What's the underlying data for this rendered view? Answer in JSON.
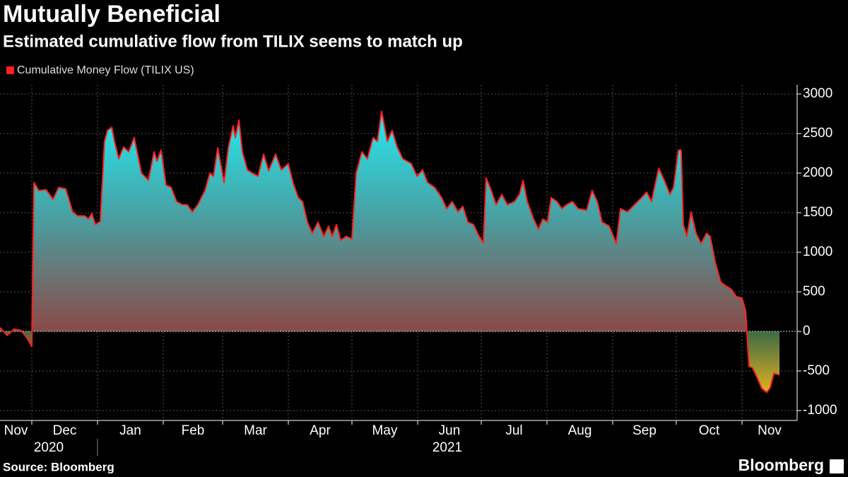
{
  "chart_data": {
    "type": "area",
    "title": "Mutually Beneficial",
    "subtitle": "Estimated cumulative flow from TILIX seems to match up",
    "series": [
      {
        "name": "Cumulative Money Flow (TILIX US)",
        "color": "#ff2020",
        "x": [
          15,
          18.3,
          21.7,
          25,
          27.7,
          30,
          31,
          33.3,
          36.7,
          40,
          42.7,
          46,
          49.3,
          51.7,
          55,
          56.7,
          58.3,
          60,
          62.3,
          64.3,
          65.7,
          67.7,
          69,
          71,
          73.3,
          75.7,
          78.3,
          81.7,
          85,
          87.7,
          89,
          91,
          93.3,
          95.7,
          98.3,
          101,
          103.3,
          105.7,
          108.3,
          111.7,
          114,
          115.7,
          117.7,
          120.7,
          122.7,
          125,
          126,
          127.7,
          129.3,
          131.7,
          134,
          136.7,
          139.3,
          141.7,
          145,
          147.7,
          151,
          153.3,
          155.7,
          157.7,
          160,
          162.3,
          165,
          167.7,
          170,
          171.7,
          173.7,
          175.7,
          178.3,
          181,
          183,
          185.7,
          188.3,
          191,
          193,
          195,
          197.7,
          200,
          202.3,
          205,
          209,
          211.7,
          214.3,
          216.7,
          220,
          223.3,
          225.7,
          228.3,
          231,
          233.3,
          235.7,
          238.3,
          241,
          243,
          244.3,
          246.7,
          249,
          251.7,
          254.3,
          257.7,
          260,
          261.7,
          263.7,
          266.7,
          269,
          271,
          273.3,
          275,
          277.7,
          280,
          282.3,
          285,
          287.7,
          291.7,
          294.3,
          296.7,
          299,
          302.3,
          305.7,
          307.7,
          311,
          314.3,
          317.7,
          320,
          322.3,
          325.7,
          328.3,
          331,
          332.7,
          335,
          336.3,
          337.3,
          339,
          341,
          343.3,
          345.7,
          348.3,
          350,
          352.3,
          355,
          357.7,
          360,
          362.3,
          365,
          366.7,
          368.3,
          370,
          372.3,
          374.3,
          376.7,
          378.3,
          380,
          382.7
        ],
        "values": [
          50,
          -50,
          30,
          10,
          -80,
          -190,
          1880,
          1780,
          1790,
          1670,
          1820,
          1800,
          1510,
          1460,
          1460,
          1420,
          1490,
          1350,
          1390,
          2400,
          2540,
          2580,
          2400,
          2180,
          2330,
          2270,
          2450,
          2000,
          1910,
          2270,
          2150,
          2290,
          1850,
          1820,
          1640,
          1600,
          1600,
          1510,
          1600,
          1780,
          2000,
          1960,
          2320,
          1880,
          2320,
          2600,
          2450,
          2670,
          2270,
          2040,
          2000,
          1960,
          2240,
          2030,
          2240,
          2040,
          2120,
          1870,
          1690,
          1640,
          1380,
          1240,
          1380,
          1200,
          1330,
          1200,
          1350,
          1150,
          1200,
          1170,
          2000,
          2270,
          2180,
          2450,
          2400,
          2780,
          2400,
          2540,
          2330,
          2180,
          2120,
          1960,
          2040,
          1880,
          1820,
          1690,
          1550,
          1640,
          1510,
          1580,
          1380,
          1350,
          1200,
          1120,
          1940,
          1780,
          1600,
          1730,
          1600,
          1640,
          1730,
          1910,
          1640,
          1420,
          1290,
          1420,
          1380,
          1690,
          1640,
          1550,
          1600,
          1640,
          1550,
          1530,
          1780,
          1640,
          1380,
          1330,
          1110,
          1550,
          1510,
          1600,
          1690,
          1760,
          1640,
          2060,
          1910,
          1730,
          1820,
          2290,
          2290,
          1350,
          1200,
          1510,
          1240,
          1110,
          1240,
          1200,
          880,
          620,
          570,
          530,
          440,
          420,
          260,
          -440,
          -460,
          -590,
          -720,
          -770,
          -710,
          -530,
          -549.2563
        ]
      }
    ],
    "xlim": [
      15,
      391
    ],
    "xticks": [
      {
        "value": 0,
        "label": "Nov"
      },
      {
        "value": 30,
        "label": "Dec"
      },
      {
        "value": 61,
        "label": "Jan"
      },
      {
        "value": 92,
        "label": "Feb"
      },
      {
        "value": 120,
        "label": "Mar"
      },
      {
        "value": 151,
        "label": "Apr"
      },
      {
        "value": 181,
        "label": "May"
      },
      {
        "value": 212,
        "label": "Jun"
      },
      {
        "value": 242,
        "label": "Jul"
      },
      {
        "value": 273,
        "label": "Aug"
      },
      {
        "value": 304,
        "label": "Sep"
      },
      {
        "value": 334,
        "label": "Oct"
      },
      {
        "value": 365,
        "label": "Nov"
      }
    ],
    "years": [
      {
        "value": 0,
        "label": "2020"
      },
      {
        "value": 61,
        "label": "2021"
      }
    ],
    "ylim": [
      -1125,
      3116
    ],
    "yticks": [
      -1000,
      -500,
      0,
      500,
      1000,
      1500,
      2000,
      2500,
      3000
    ],
    "grid": true
  },
  "footer": {
    "source": "Source: Bloomberg",
    "brand": "Bloomberg"
  }
}
